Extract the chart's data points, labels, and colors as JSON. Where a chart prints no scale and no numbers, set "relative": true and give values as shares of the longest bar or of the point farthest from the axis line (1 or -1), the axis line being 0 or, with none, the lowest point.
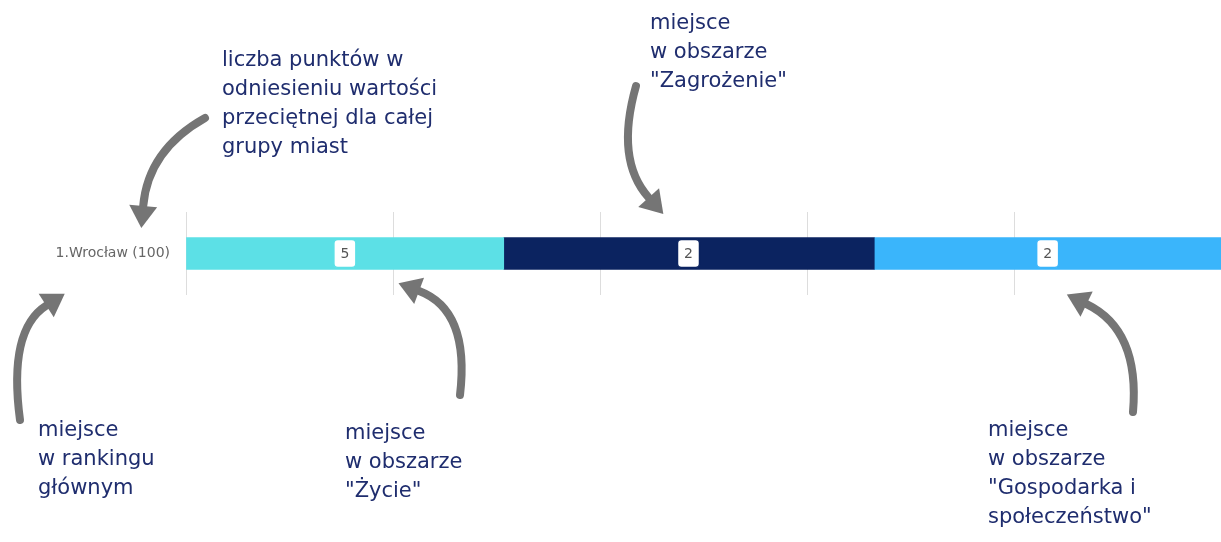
{
  "chart_data": {
    "type": "bar",
    "orientation": "horizontal",
    "stacked": true,
    "relative": true,
    "grid": "x",
    "legend": false,
    "categories": [
      "1.Wrocław (100)"
    ],
    "series": [
      {
        "color": "#5ce0e6",
        "values": [
          0.307
        ]
      },
      {
        "color": "#0b2360",
        "values": [
          0.358
        ]
      },
      {
        "color": "#3ab5fb",
        "values": [
          0.335
        ]
      }
    ],
    "annotations": [
      {
        "text": "5",
        "x": 0.1535,
        "y": "1.Wrocław (100)"
      },
      {
        "text": "2",
        "x": 0.4855,
        "y": "1.Wrocław (100)"
      },
      {
        "text": "2",
        "x": 0.8325,
        "y": "1.Wrocław (100)"
      },
      "liczba punktów w\nodniesieniu wartości\nprzeciętnej dla całej\ngrupy miast",
      "miejsce\nw obszarze\n\"Zagrożenie\"",
      "miejsce\nw rankingu\ngłównym",
      "miejsce\nw obszarze\n\"Życie\"",
      "miejsce\nw obszarze\n\"Gospodarka i\nspołeczeństwo\""
    ]
  }
}
